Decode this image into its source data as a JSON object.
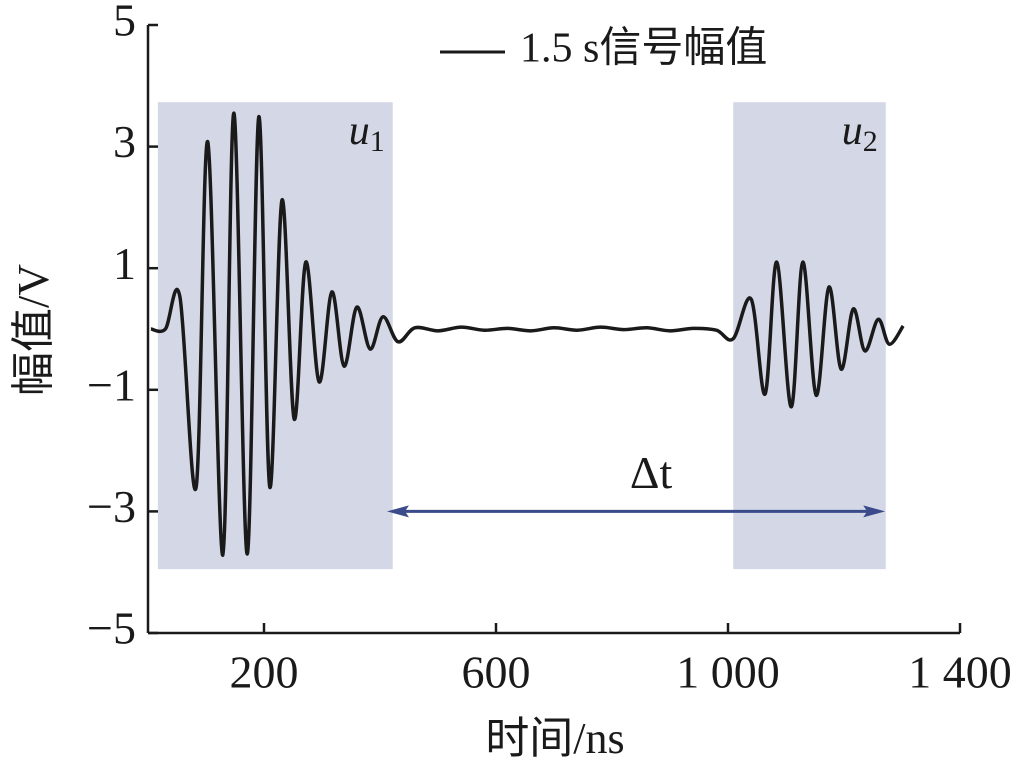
{
  "chart_data": {
    "type": "line",
    "x_label": "时间/ns",
    "y_label": "幅值/V",
    "xlim": [
      0,
      1400
    ],
    "ylim": [
      -5,
      5
    ],
    "xticks": [
      200,
      600,
      {
        "value": 1000,
        "label": "1 000"
      },
      {
        "value": 1400,
        "label": "1 400"
      }
    ],
    "yticks": [
      {
        "value": -5,
        "label": "−5"
      },
      {
        "value": -3,
        "label": "−3"
      },
      {
        "value": -1,
        "label": "−1"
      },
      1,
      3,
      5
    ],
    "grid": false,
    "legend": "top",
    "series": [
      {
        "name": "1.5 s信号幅值",
        "color": "#1a1a1a",
        "x": [
          5,
          30,
          55,
          83,
          103,
          129,
          148,
          171,
          191,
          210,
          231,
          252,
          272,
          295,
          317,
          338,
          360,
          383,
          405,
          431,
          460,
          500,
          540,
          580,
          620,
          660,
          700,
          740,
          780,
          820,
          860,
          900,
          940,
          980,
          1009,
          1040,
          1064,
          1084,
          1109,
          1129,
          1152,
          1174,
          1195,
          1216,
          1236,
          1259,
          1278,
          1302
        ],
        "values": [
          0,
          0,
          0.53,
          -2.6,
          3.08,
          -3.72,
          3.55,
          -3.7,
          3.49,
          -2.6,
          2.12,
          -1.48,
          1.1,
          -0.87,
          0.61,
          -0.61,
          0.36,
          -0.33,
          0.2,
          -0.21,
          0.02,
          -0.03,
          0.03,
          -0.02,
          0.01,
          -0.03,
          0.02,
          -0.02,
          0.03,
          -0.01,
          0.02,
          -0.03,
          0.01,
          -0.02,
          -0.16,
          0.49,
          -1.07,
          1.1,
          -1.28,
          1.1,
          -1.09,
          0.69,
          -0.66,
          0.33,
          -0.36,
          0.16,
          -0.25,
          0.05
        ]
      }
    ],
    "regions": [
      {
        "label": "u",
        "sub": "1",
        "color": "#d4d8e6",
        "xlim": [
          17,
          422
        ],
        "ylim": [
          -3.95,
          3.73
        ]
      },
      {
        "label": "u",
        "sub": "2",
        "color": "#d4d8e6",
        "xlim": [
          1009,
          1272
        ],
        "ylim": [
          -3.95,
          3.73
        ]
      }
    ],
    "arrow": {
      "label": "Δt",
      "color": "#3a4a8a",
      "x": [
        412,
        1271
      ],
      "y": -3
    }
  }
}
